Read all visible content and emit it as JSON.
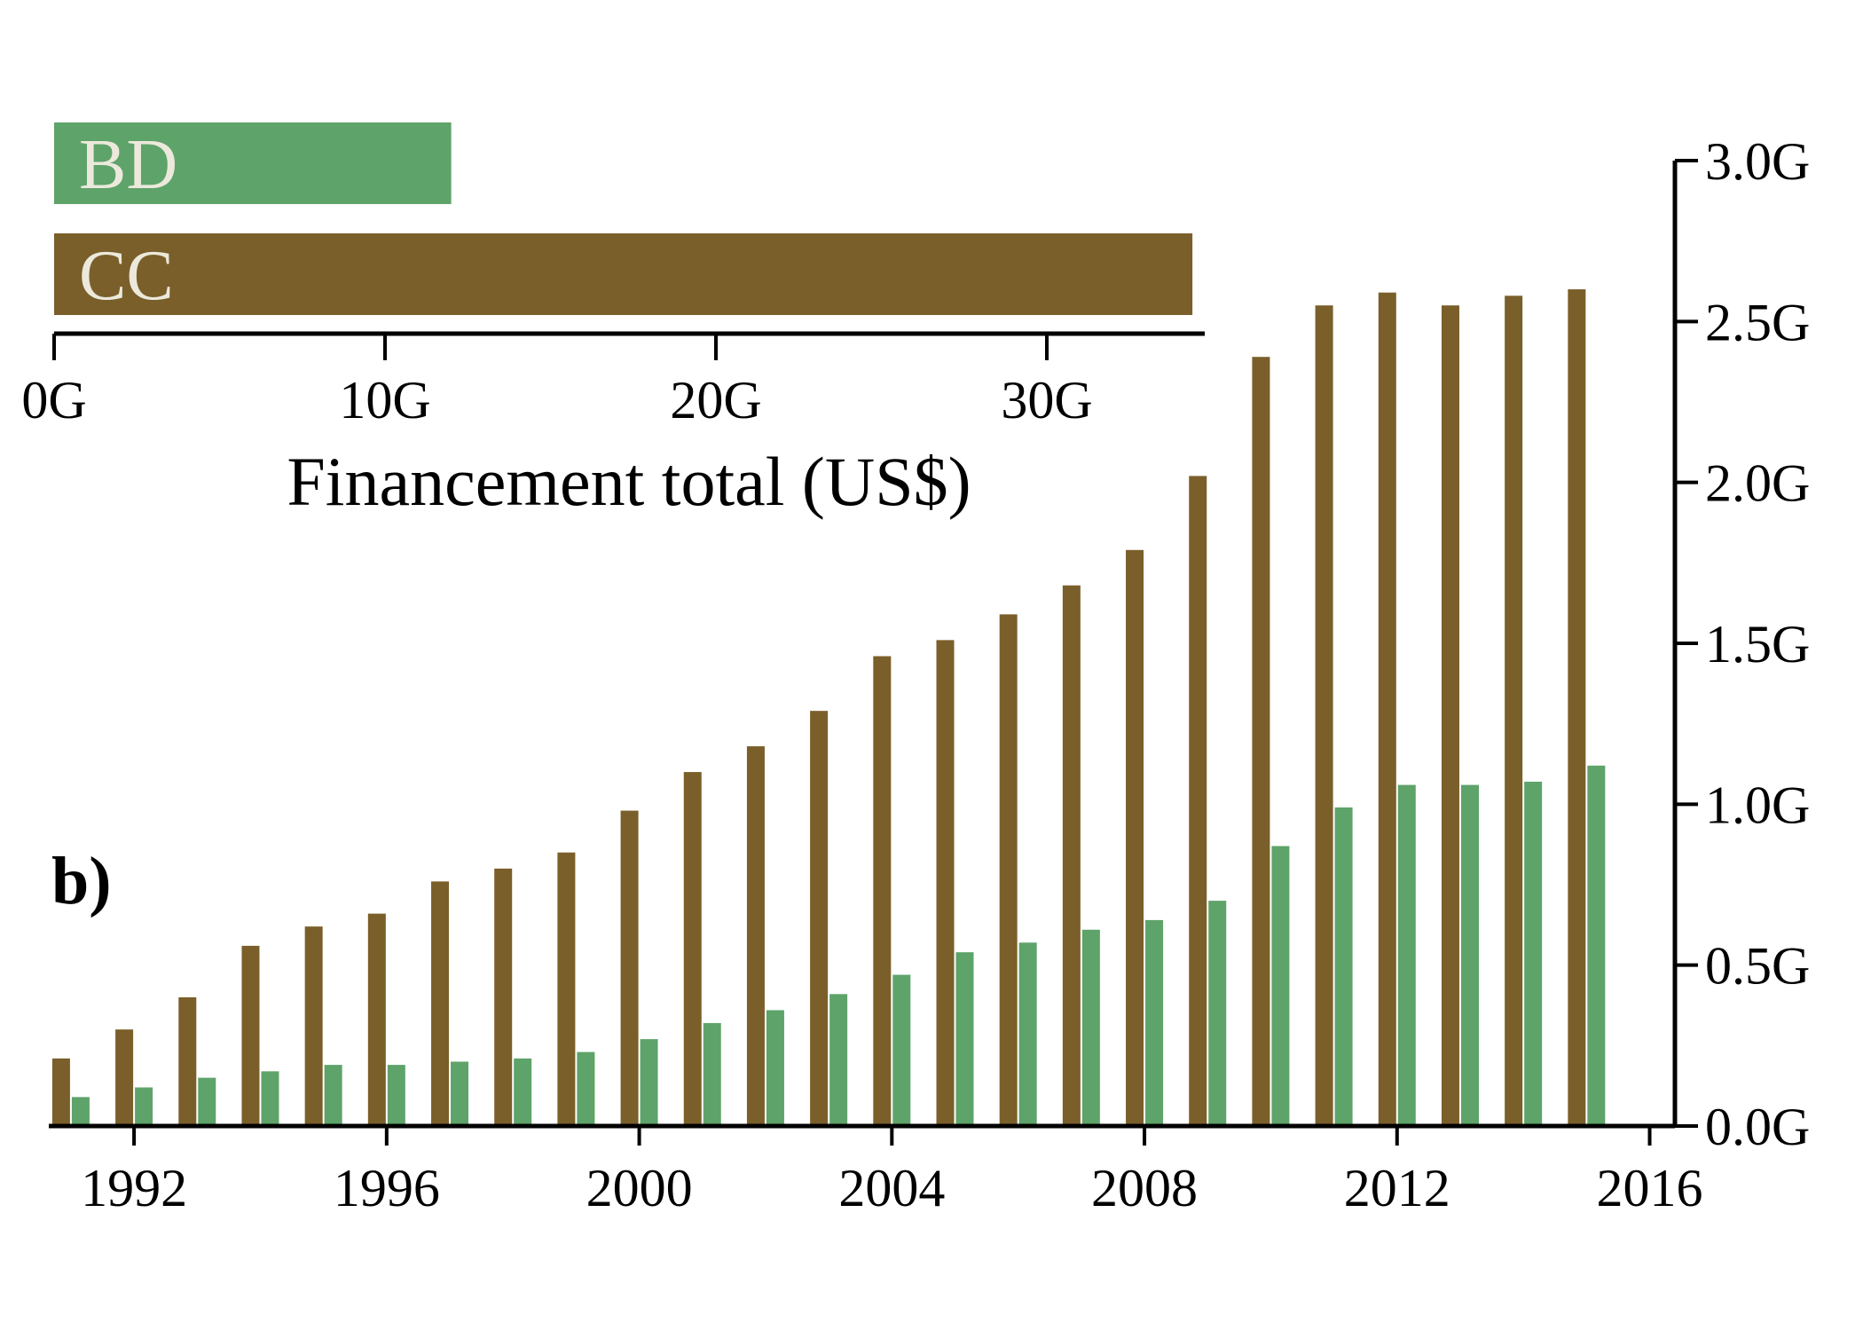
{
  "chart_data": [
    {
      "type": "bar",
      "orientation": "horizontal",
      "categories": [
        "BD",
        "CC"
      ],
      "values": [
        12.0,
        34.4
      ],
      "xlabel": "Financement total (US$)",
      "xlim": [
        0,
        35
      ],
      "x_ticks": [
        0,
        10,
        20,
        30
      ],
      "x_tick_labels": [
        "0G",
        "10G",
        "20G",
        "30G"
      ],
      "colors": {
        "BD": "#5ea36a",
        "CC": "#7a5f2a"
      },
      "grid": false
    },
    {
      "type": "bar",
      "panel_label": "b)",
      "categories": [
        "1991",
        "1992",
        "1993",
        "1994",
        "1995",
        "1996",
        "1997",
        "1998",
        "1999",
        "2000",
        "2001",
        "2002",
        "2003",
        "2004",
        "2005",
        "2006",
        "2007",
        "2008",
        "2009",
        "2010",
        "2011",
        "2012",
        "2013",
        "2014",
        "2015"
      ],
      "series": [
        {
          "name": "CC",
          "color": "#7a5f2a",
          "values": [
            0.21,
            0.3,
            0.4,
            0.56,
            0.62,
            0.66,
            0.76,
            0.8,
            0.85,
            0.98,
            1.1,
            1.18,
            1.29,
            1.46,
            1.51,
            1.59,
            1.68,
            1.79,
            2.02,
            2.39,
            2.55,
            2.59,
            2.55,
            2.58,
            2.6
          ]
        },
        {
          "name": "BD",
          "color": "#5ea36a",
          "values": [
            0.09,
            0.12,
            0.15,
            0.17,
            0.19,
            0.19,
            0.2,
            0.21,
            0.23,
            0.27,
            0.32,
            0.36,
            0.41,
            0.47,
            0.54,
            0.57,
            0.61,
            0.64,
            0.7,
            0.87,
            0.99,
            1.06,
            1.06,
            1.07,
            1.12
          ]
        }
      ],
      "ylim": [
        0,
        3.0
      ],
      "y_axis_side": "right",
      "y_ticks": [
        0,
        0.5,
        1.0,
        1.5,
        2.0,
        2.5,
        3.0
      ],
      "y_tick_labels": [
        "0.0G",
        "0.5G",
        "1.0G",
        "1.5G",
        "2.0G",
        "2.5G",
        "3.0G"
      ],
      "x_ticks": [
        1992,
        1996,
        2000,
        2004,
        2008,
        2012,
        2016
      ],
      "x_tick_labels": [
        "1992",
        "1996",
        "2000",
        "2004",
        "2008",
        "2012",
        "2016"
      ],
      "xlim": [
        1990.65,
        2016.4
      ],
      "grid": false
    }
  ]
}
